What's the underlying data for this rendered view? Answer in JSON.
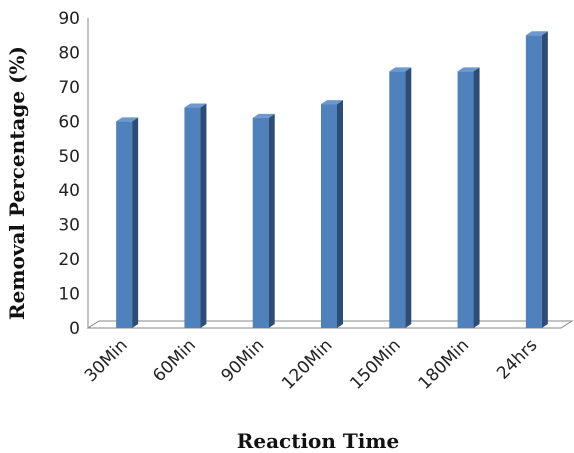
{
  "chart_data": {
    "type": "bar",
    "categories": [
      "30Min",
      "60Min",
      "90Min",
      "120Min",
      "150Min",
      "180Min",
      "24hrs"
    ],
    "values": [
      60,
      64,
      61,
      65,
      74.5,
      74.5,
      85
    ],
    "xlabel": "Reaction Time",
    "ylabel": "Removal Percentage (%)",
    "ylim": [
      0,
      90
    ],
    "yticks": [
      "0",
      "10",
      "20",
      "30",
      "40",
      "50",
      "60",
      "70",
      "80",
      "90"
    ],
    "grid": false,
    "legend": "none",
    "colors": {
      "bar_front": "#4f81bd",
      "bar_side": "#2c4d75",
      "bar_top": "#6d97cf",
      "axis": "#888888"
    }
  }
}
